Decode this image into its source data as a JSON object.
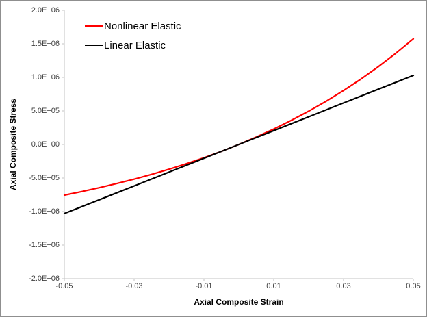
{
  "chart_data": {
    "type": "line",
    "title": "",
    "xlabel": "Axial Composite Strain",
    "ylabel": "Axial Composite Stress",
    "xlim": [
      -0.05,
      0.05
    ],
    "ylim": [
      -2000000,
      2000000
    ],
    "grid": false,
    "legend_position": "top-left-inside",
    "x_ticks": [
      "-0.05",
      "-0.03",
      "-0.01",
      "0.01",
      "0.03",
      "0.05"
    ],
    "x_tick_values": [
      -0.05,
      -0.03,
      -0.01,
      0.01,
      0.03,
      0.05
    ],
    "y_ticks": [
      "2.0E+06",
      "1.5E+06",
      "1.0E+06",
      "5.0E+05",
      "0.0E+00",
      "-5.0E+05",
      "-1.0E+06",
      "-1.5E+06",
      "-2.0E+06"
    ],
    "y_tick_values": [
      2000000,
      1500000,
      1000000,
      500000,
      0,
      -500000,
      -1000000,
      -1500000,
      -2000000
    ],
    "x": [
      -0.05,
      -0.045,
      -0.04,
      -0.035,
      -0.03,
      -0.025,
      -0.02,
      -0.015,
      -0.01,
      -0.005,
      0,
      0.005,
      0.01,
      0.015,
      0.02,
      0.025,
      0.03,
      0.035,
      0.04,
      0.045,
      0.05
    ],
    "series": [
      {
        "name": "Nonlinear Elastic",
        "color": "#FF0000",
        "values": [
          -755000,
          -702000,
          -645000,
          -583000,
          -517000,
          -446000,
          -369000,
          -287000,
          -198000,
          -103000,
          0,
          111000,
          230000,
          358000,
          496000,
          644000,
          804000,
          975000,
          1160000,
          1360000,
          1574000
        ]
      },
      {
        "name": "Linear Elastic",
        "color": "#000000",
        "values": [
          -1030000,
          -927000,
          -824000,
          -721000,
          -618000,
          -515000,
          -412000,
          -309000,
          -206000,
          -103000,
          0,
          103000,
          206000,
          309000,
          412000,
          515000,
          618000,
          721000,
          824000,
          927000,
          1030000
        ]
      }
    ]
  },
  "colors": {
    "axis_line": "#c3c3c3",
    "tick_text": "#3f3f3f",
    "title_text": "#000000",
    "frame_border": "#8f8f8f",
    "background": "#ffffff"
  }
}
